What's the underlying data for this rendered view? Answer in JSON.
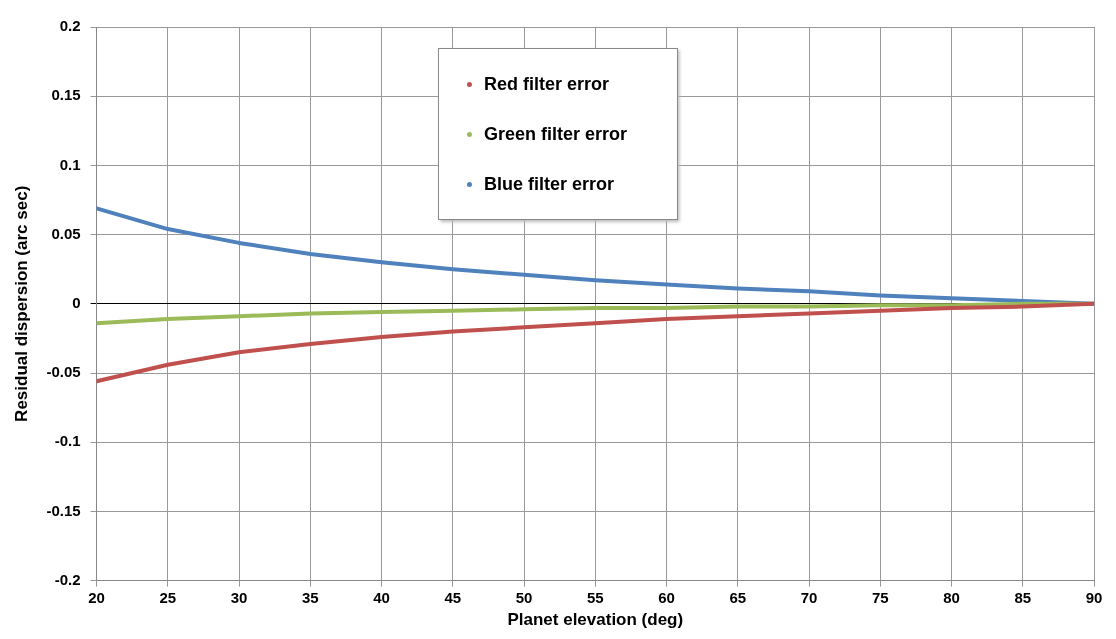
{
  "chart_data": {
    "type": "line",
    "xlabel": "Planet elevation (deg)",
    "ylabel": "Residual dispersion (arc sec)",
    "x": [
      20,
      25,
      30,
      35,
      40,
      45,
      50,
      55,
      60,
      65,
      70,
      75,
      80,
      85,
      90
    ],
    "series": [
      {
        "name": "Red filter error",
        "color": "#c0504d",
        "values": [
          -0.056,
          -0.044,
          -0.035,
          -0.029,
          -0.024,
          -0.02,
          -0.017,
          -0.014,
          -0.011,
          -0.009,
          -0.007,
          -0.005,
          -0.003,
          -0.002,
          0
        ]
      },
      {
        "name": "Green filter error",
        "color": "#9bbb59",
        "values": [
          -0.014,
          -0.011,
          -0.009,
          -0.007,
          -0.006,
          -0.005,
          -0.004,
          -0.003,
          -0.003,
          -0.002,
          -0.002,
          -0.001,
          -0.001,
          0,
          0
        ]
      },
      {
        "name": "Blue filter error",
        "color": "#4f81bd",
        "values": [
          0.069,
          0.054,
          0.044,
          0.036,
          0.03,
          0.025,
          0.021,
          0.017,
          0.014,
          0.011,
          0.009,
          0.006,
          0.004,
          0.002,
          0
        ]
      }
    ],
    "xlim": [
      20,
      90
    ],
    "xticks": [
      20,
      25,
      30,
      35,
      40,
      45,
      50,
      55,
      60,
      65,
      70,
      75,
      80,
      85,
      90
    ],
    "ylim": [
      -0.2,
      0.2
    ],
    "yticks": [
      -0.2,
      -0.15,
      -0.1,
      -0.05,
      0,
      0.05,
      0.1,
      0.15,
      0.2
    ],
    "grid": true,
    "legend": "top",
    "marker": "none",
    "line_style": "solid"
  }
}
